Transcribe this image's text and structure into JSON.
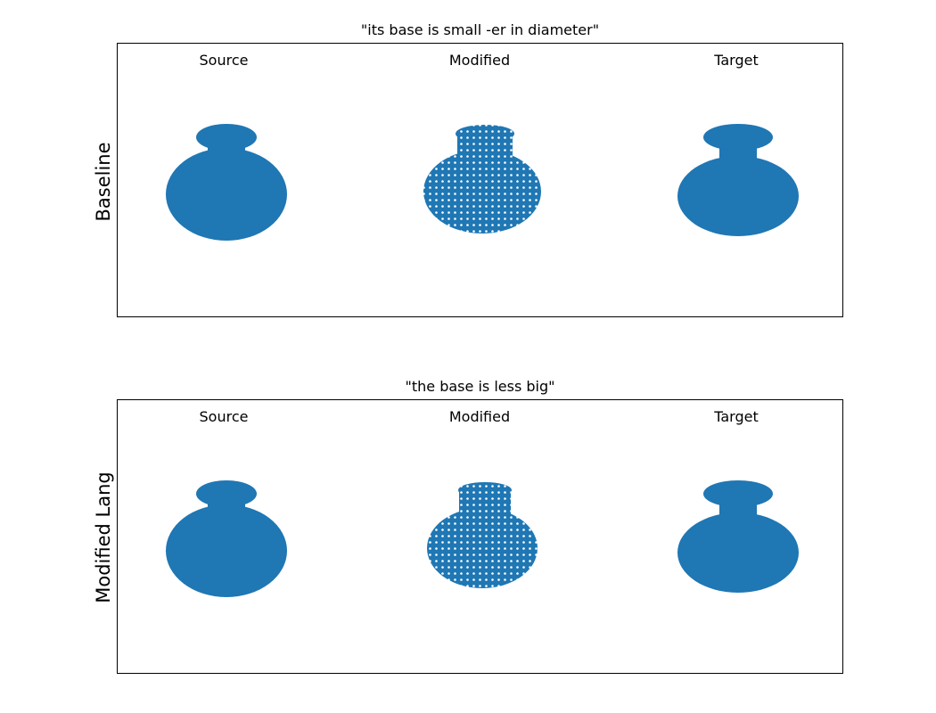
{
  "panels": [
    {
      "title": "\"its base is small -er in diameter\"",
      "row_label": "Baseline",
      "columns": [
        "Source",
        "Modified",
        "Target"
      ]
    },
    {
      "title": "\"the base is less big\"",
      "row_label": "Modified Lang",
      "columns": [
        "Source",
        "Modified",
        "Target"
      ]
    }
  ],
  "colors": {
    "point": "#1f77b4",
    "frame": "#000000"
  },
  "shape_icons": [
    "vase-point-cloud-source",
    "vase-point-cloud-modified",
    "vase-point-cloud-target"
  ]
}
